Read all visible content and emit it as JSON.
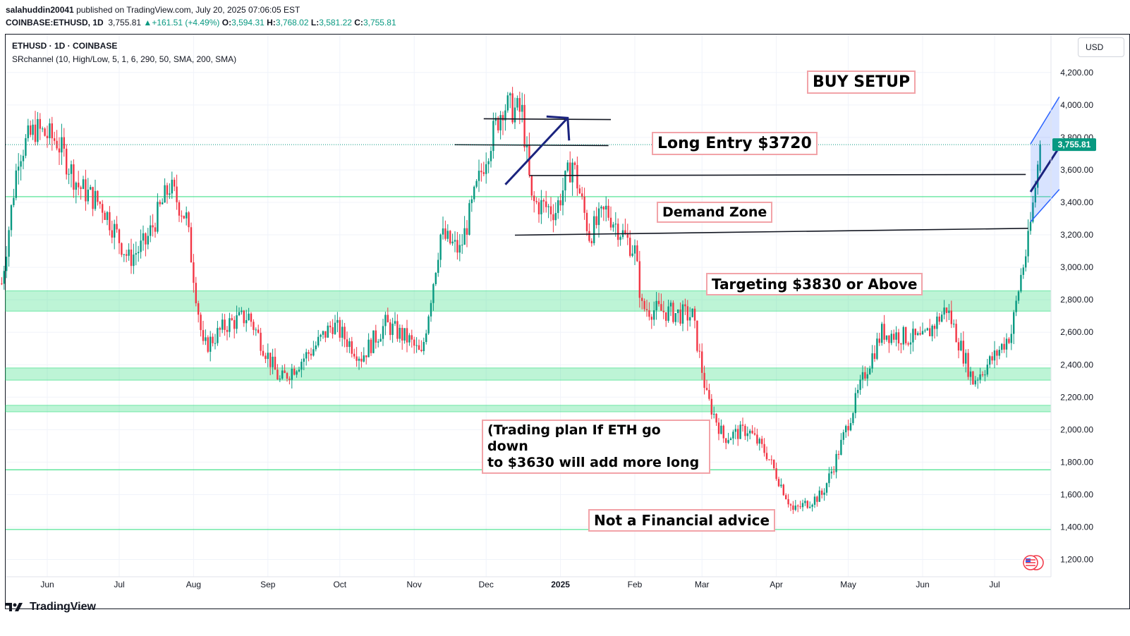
{
  "header": {
    "publisher": "salahuddin20041",
    "published_text": "published on TradingView.com, July 20, 2025 07:06:05 EST",
    "symbol_line": "COINBASE:ETHUSD, 1D",
    "last": "3,755.81",
    "change": "+161.51 (+4.49%)",
    "o_label": "O:",
    "o": "3,594.31",
    "h_label": "H:",
    "h": "3,768.02",
    "l_label": "L:",
    "l": "3,581.22",
    "c_label": "C:",
    "c": "3,755.81"
  },
  "legend": {
    "title": "ETHUSD · 1D · COINBASE",
    "indicator": "SRchannel (10, High/Low, 5, 1, 6, 290, 50, SMA, 200, SMA)"
  },
  "currency": "USD",
  "annotations": {
    "buy_setup": "BUY SETUP",
    "long_entry": "Long Entry $3720",
    "demand_zone": "Demand Zone",
    "targeting": "Targeting $3830 or Above",
    "plan_line1": "(Trading plan If ETH go down",
    "plan_line2": "to $3630 will add more long",
    "advice": "Not a Financial advice"
  },
  "footer": {
    "brand": "TradingView"
  },
  "colors": {
    "up": "#089981",
    "down": "#f23645",
    "zone": "#42e08a",
    "annotation_border": "#f2a3a8",
    "channel": "#2962ff",
    "trend_arrow": "#1a237e"
  },
  "chart_data": {
    "type": "candlestick",
    "symbol": "ETHUSD",
    "interval": "1D",
    "exchange": "COINBASE",
    "ylim": [
      1100,
      4350
    ],
    "y_ticks": [
      "1,200.00",
      "1,400.00",
      "1,600.00",
      "1,800.00",
      "2,000.00",
      "2,200.00",
      "2,400.00",
      "2,600.00",
      "2,800.00",
      "3,000.00",
      "3,200.00",
      "3,400.00",
      "3,600.00",
      "3,800.00",
      "4,000.00",
      "4,200.00"
    ],
    "y_tick_values": [
      1200,
      1400,
      1600,
      1800,
      2000,
      2200,
      2400,
      2600,
      2800,
      3000,
      3200,
      3400,
      3600,
      3800,
      4000,
      4200
    ],
    "x_labels": [
      "Jun",
      "Jul",
      "Aug",
      "Sep",
      "Oct",
      "Nov",
      "Dec",
      "2025",
      "Feb",
      "Mar",
      "Apr",
      "May",
      "Jun",
      "Jul"
    ],
    "x_label_dates": [
      "2024-06-01",
      "2024-07-01",
      "2024-08-01",
      "2024-09-01",
      "2024-10-01",
      "2024-11-01",
      "2024-12-01",
      "2025-01-01",
      "2025-02-01",
      "2025-03-01",
      "2025-04-01",
      "2025-05-01",
      "2025-06-01",
      "2025-07-01"
    ],
    "date_range": [
      "2024-05-13",
      "2025-07-20"
    ],
    "last_price": 3755.81,
    "last_price_label": "3,755.81",
    "price_path": [
      [
        "2024-05-13",
        2900
      ],
      [
        "2024-05-20",
        3700
      ],
      [
        "2024-05-27",
        3850
      ],
      [
        "2024-06-05",
        3780
      ],
      [
        "2024-06-14",
        3500
      ],
      [
        "2024-06-24",
        3380
      ],
      [
        "2024-07-05",
        3050
      ],
      [
        "2024-07-12",
        3150
      ],
      [
        "2024-07-22",
        3500
      ],
      [
        "2024-07-29",
        3300
      ],
      [
        "2024-08-05",
        2500
      ],
      [
        "2024-08-15",
        2650
      ],
      [
        "2024-08-24",
        2700
      ],
      [
        "2024-09-06",
        2300
      ],
      [
        "2024-09-20",
        2500
      ],
      [
        "2024-09-28",
        2650
      ],
      [
        "2024-10-10",
        2450
      ],
      [
        "2024-10-20",
        2650
      ],
      [
        "2024-10-30",
        2550
      ],
      [
        "2024-11-04",
        2450
      ],
      [
        "2024-11-12",
        3200
      ],
      [
        "2024-11-20",
        3100
      ],
      [
        "2024-12-01",
        3700
      ],
      [
        "2024-12-08",
        4000
      ],
      [
        "2024-12-16",
        3950
      ],
      [
        "2024-12-20",
        3400
      ],
      [
        "2024-12-30",
        3350
      ],
      [
        "2025-01-06",
        3650
      ],
      [
        "2025-01-13",
        3200
      ],
      [
        "2025-01-20",
        3350
      ],
      [
        "2025-02-01",
        3100
      ],
      [
        "2025-02-04",
        2750
      ],
      [
        "2025-02-25",
        2700
      ],
      [
        "2025-03-03",
        2200
      ],
      [
        "2025-03-10",
        1950
      ],
      [
        "2025-03-20",
        2000
      ],
      [
        "2025-03-28",
        1850
      ],
      [
        "2025-04-08",
        1500
      ],
      [
        "2025-04-20",
        1600
      ],
      [
        "2025-04-25",
        1780
      ],
      [
        "2025-05-08",
        2350
      ],
      [
        "2025-05-15",
        2600
      ],
      [
        "2025-06-01",
        2550
      ],
      [
        "2025-06-11",
        2750
      ],
      [
        "2025-06-22",
        2300
      ],
      [
        "2025-07-01",
        2450
      ],
      [
        "2025-07-08",
        2600
      ],
      [
        "2025-07-12",
        2950
      ],
      [
        "2025-07-15",
        3150
      ],
      [
        "2025-07-18",
        3500
      ],
      [
        "2025-07-20",
        3755.81
      ]
    ],
    "zones": [
      [
        2730,
        2855
      ],
      [
        2305,
        2380
      ],
      [
        2110,
        2150
      ]
    ],
    "horizontal_levels": [
      3435,
      1753,
      1385
    ],
    "trend_lines": [
      {
        "from": [
          "2024-11-30",
          3915
        ],
        "to": [
          "2025-01-22",
          3910
        ]
      },
      {
        "from": [
          "2024-11-18",
          3755
        ],
        "to": [
          "2025-01-21",
          3750
        ]
      },
      {
        "from": [
          "2024-12-19",
          3565
        ],
        "to": [
          "2025-07-14",
          3572
        ]
      },
      {
        "from": [
          "2024-12-13",
          3198
        ],
        "to": [
          "2025-07-15",
          3240
        ]
      }
    ],
    "arrow": {
      "from": [
        "2024-12-09",
        3510
      ],
      "to": [
        "2025-01-04",
        3920
      ]
    },
    "channel": {
      "upper": [
        [
          "2025-07-16",
          3760
        ],
        [
          "2025-07-28",
          4050
        ]
      ],
      "middle": [
        [
          "2025-07-16",
          3465
        ],
        [
          "2025-07-28",
          3740
        ]
      ],
      "lower": [
        [
          "2025-07-16",
          3280
        ],
        [
          "2025-07-28",
          3480
        ]
      ]
    }
  }
}
